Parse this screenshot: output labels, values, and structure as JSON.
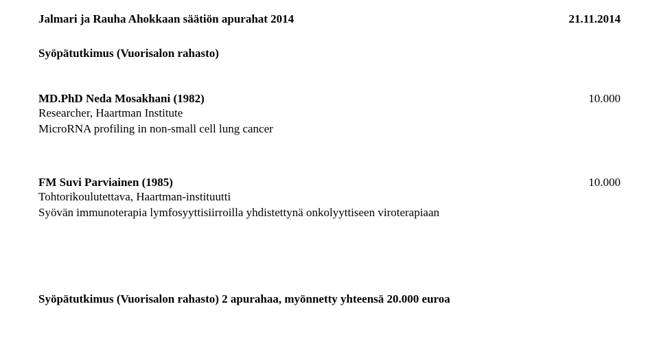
{
  "colors": {
    "background": "#ffffff",
    "text": "#000000"
  },
  "typography": {
    "family": "Palatino Linotype, Book Antiqua, Palatino, Georgia, serif",
    "base_size_pt": 13,
    "bold_weight": 700
  },
  "header": {
    "title": "Jalmari ja Rauha Ahokkaan säätiön apurahat 2014",
    "date": "21.11.2014"
  },
  "section_title": "Syöpätutkimus (Vuorisalon rahasto)",
  "entries": [
    {
      "name": "MD.PhD Neda Mosakhani (1982)",
      "amount": "10.000",
      "affiliation": "Researcher, Haartman Institute",
      "project": "MicroRNA profiling in non-small cell lung cancer"
    },
    {
      "name": "FM Suvi Parviainen (1985)",
      "amount": "10.000",
      "affiliation": "Tohtorikoulutettava, Haartman-instituutti",
      "project": "Syövän immunoterapia lymfosyyttisiirroilla yhdistettynä onkolyyttiseen viroterapiaan"
    }
  ],
  "footer": "Syöpätutkimus (Vuorisalon rahasto) 2 apurahaa, myönnetty yhteensä 20.000 euroa"
}
